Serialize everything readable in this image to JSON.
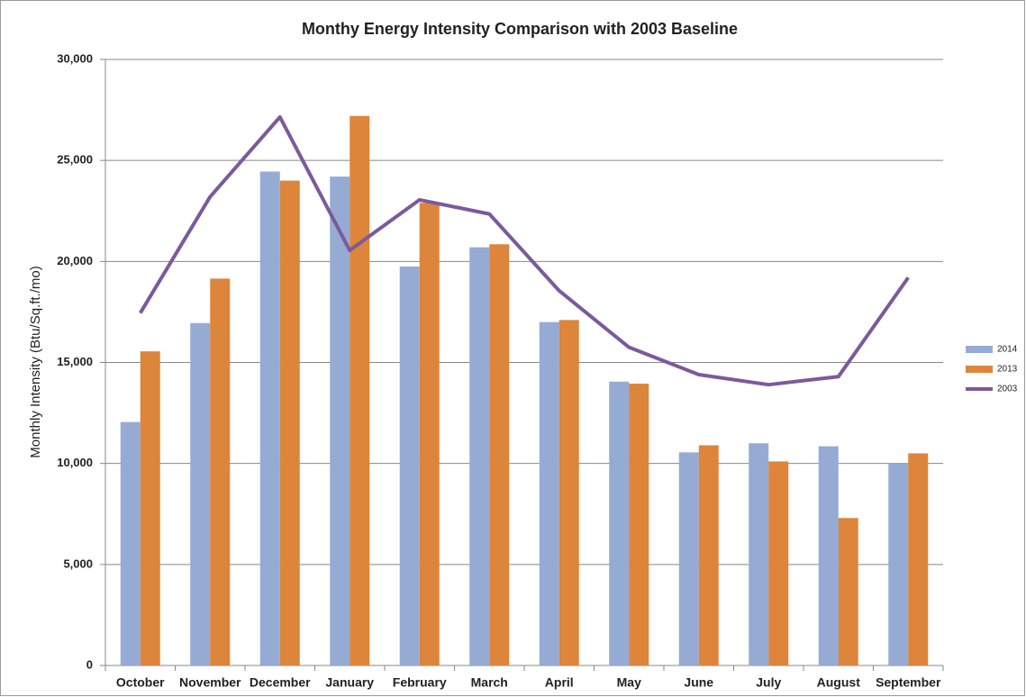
{
  "chart_data": {
    "type": "bar",
    "title": "Monthy Energy Intensity Comparison with 2003 Baseline",
    "y_label": "Monthly Intensity (Btu/Sq.ft./mo)",
    "categories": [
      "October",
      "November",
      "December",
      "January",
      "February",
      "March",
      "April",
      "May",
      "June",
      "July",
      "August",
      "September"
    ],
    "series": [
      {
        "name": "2014",
        "type": "bar",
        "color": "#95abd4",
        "values": [
          12050,
          16950,
          24450,
          24200,
          19750,
          20700,
          17000,
          14050,
          10550,
          11000,
          10850,
          10000
        ]
      },
      {
        "name": "2013",
        "type": "bar",
        "color": "#dc853b",
        "values": [
          15550,
          19150,
          24000,
          27200,
          22900,
          20850,
          17100,
          13950,
          10900,
          10100,
          7300,
          10500
        ]
      },
      {
        "name": "2003",
        "type": "line",
        "color": "#7b5a9b",
        "values": [
          17450,
          23200,
          27150,
          20550,
          23050,
          22350,
          18550,
          15750,
          14400,
          13900,
          14300,
          19200
        ]
      }
    ],
    "ylim": [
      0,
      30000
    ],
    "yticks": [
      0,
      {
        "value": 5000,
        "label": "5,000"
      },
      {
        "value": 10000,
        "label": "10,000"
      },
      {
        "value": 15000,
        "label": "15,000"
      },
      {
        "value": 20000,
        "label": "20,000"
      },
      {
        "value": 25000,
        "label": "25,000"
      },
      {
        "value": 30000,
        "label": "30,000"
      }
    ],
    "grid": true,
    "legend": "right"
  }
}
